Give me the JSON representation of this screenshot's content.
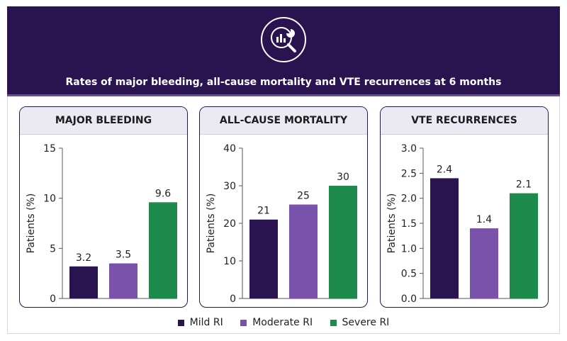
{
  "header": {
    "title": "Rates of major bleeding, all-cause mortality and VTE recurrences at 6 months",
    "icon": "magnifier-chart-icon"
  },
  "legend": [
    {
      "name": "Mild RI",
      "color": "#2a1450"
    },
    {
      "name": "Moderate RI",
      "color": "#7b52ab"
    },
    {
      "name": "Severe RI",
      "color": "#1e8a4c"
    }
  ],
  "chart_data": [
    {
      "type": "bar",
      "title": "MAJOR BLEEDING",
      "ylabel": "Patients (%)",
      "categories": [
        "Mild RI",
        "Moderate RI",
        "Severe RI"
      ],
      "values": [
        3.2,
        3.5,
        9.6
      ],
      "value_labels": [
        "3.2",
        "3.5",
        "9.6"
      ],
      "ylim": [
        0,
        15
      ],
      "yticks": [
        "0",
        "5",
        "10",
        "15"
      ],
      "ytick_values": [
        0,
        5,
        10,
        15
      ],
      "colors": [
        "#2a1450",
        "#7b52ab",
        "#1e8a4c"
      ]
    },
    {
      "type": "bar",
      "title": "ALL-CAUSE MORTALITY",
      "ylabel": "Patients (%)",
      "categories": [
        "Mild RI",
        "Moderate RI",
        "Severe RI"
      ],
      "values": [
        21,
        25,
        30
      ],
      "value_labels": [
        "21",
        "25",
        "30"
      ],
      "ylim": [
        0,
        40
      ],
      "yticks": [
        "0",
        "10",
        "20",
        "30",
        "40"
      ],
      "ytick_values": [
        0,
        10,
        20,
        30,
        40
      ],
      "colors": [
        "#2a1450",
        "#7b52ab",
        "#1e8a4c"
      ]
    },
    {
      "type": "bar",
      "title": "VTE RECURRENCES",
      "ylabel": "Patients (%)",
      "categories": [
        "Mild RI",
        "Moderate RI",
        "Severe RI"
      ],
      "values": [
        2.4,
        1.4,
        2.1
      ],
      "value_labels": [
        "2.4",
        "1.4",
        "2.1"
      ],
      "ylim": [
        0,
        3.0
      ],
      "yticks": [
        "0.0",
        "0.5",
        "1.0",
        "1.5",
        "2.0",
        "2.5",
        "3.0"
      ],
      "ytick_values": [
        0,
        0.5,
        1.0,
        1.5,
        2.0,
        2.5,
        3.0
      ],
      "colors": [
        "#2a1450",
        "#7b52ab",
        "#1e8a4c"
      ]
    }
  ]
}
